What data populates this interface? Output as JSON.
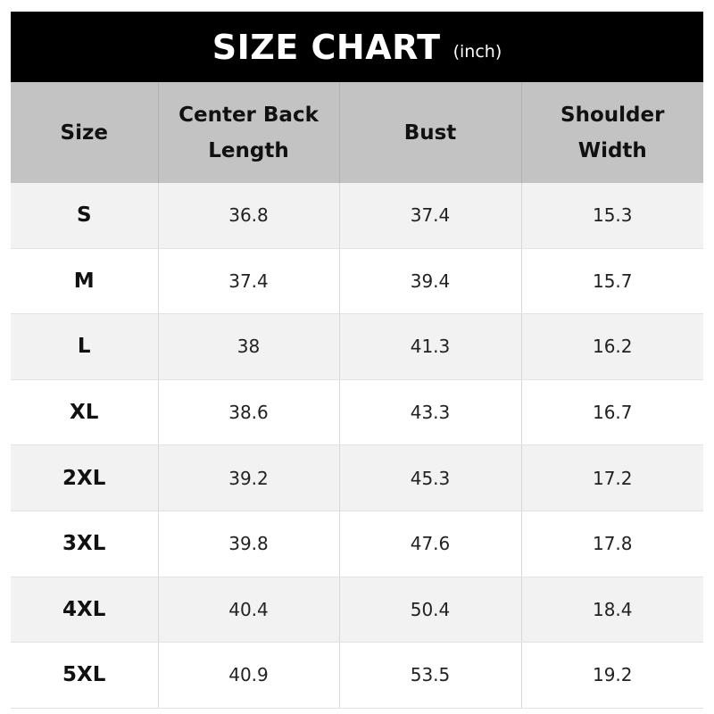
{
  "title": {
    "main": "SIZE CHART",
    "unit": "(inch)"
  },
  "columns": [
    {
      "line1": "Size",
      "line2": ""
    },
    {
      "line1": "Center Back",
      "line2": "Length"
    },
    {
      "line1": "Bust",
      "line2": ""
    },
    {
      "line1": "Shoulder",
      "line2": "Width"
    }
  ],
  "rows": [
    [
      "S",
      "36.8",
      "37.4",
      "15.3"
    ],
    [
      "M",
      "37.4",
      "39.4",
      "15.7"
    ],
    [
      "L",
      "38",
      "41.3",
      "16.2"
    ],
    [
      "XL",
      "38.6",
      "43.3",
      "16.7"
    ],
    [
      "2XL",
      "39.2",
      "45.3",
      "17.2"
    ],
    [
      "3XL",
      "39.8",
      "47.6",
      "17.8"
    ],
    [
      "4XL",
      "40.4",
      "50.4",
      "18.4"
    ],
    [
      "5XL",
      "40.9",
      "53.5",
      "19.2"
    ]
  ]
}
